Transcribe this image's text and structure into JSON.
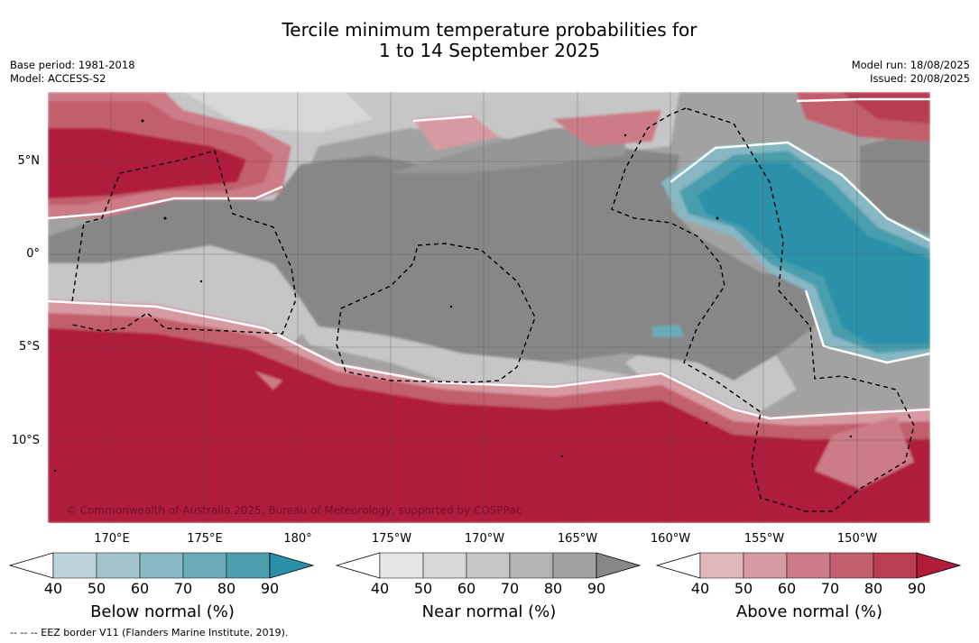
{
  "title_line1": "Tercile minimum temperature probabilities for",
  "title_line2": "1 to 14 September 2025",
  "base_period": "Base period: 1981-2018",
  "model": "Model: ACCESS-S2",
  "model_run": "Model run: 18/08/2025",
  "issued": "Issued: 20/08/2025",
  "copyright": "© Commonwealth of Australia 2025, Bureau of Meteorology, supported by COSPPac",
  "lat_labels": [
    "5°N",
    "0°",
    "5°S",
    "10°S"
  ],
  "lon_labels": [
    "170°E",
    "175°E",
    "180°",
    "175°W",
    "170°W",
    "165°W",
    "160°W",
    "155°W",
    "150°W"
  ],
  "colorbars": [
    {
      "title": "Below normal (%)",
      "ticks": [
        "40",
        "50",
        "60",
        "70",
        "80",
        "90"
      ],
      "colors": [
        "#ffffff",
        "#bdd3da",
        "#a3c5ce",
        "#87b7c3",
        "#6aabb7",
        "#4a9eae",
        "#2b91a8"
      ]
    },
    {
      "title": "Near normal (%)",
      "ticks": [
        "40",
        "50",
        "60",
        "70",
        "80",
        "90"
      ],
      "colors": [
        "#ffffff",
        "#e6e6e6",
        "#d7d7d7",
        "#c6c6c6",
        "#b3b3b3",
        "#a2a2a2",
        "#878787"
      ]
    },
    {
      "title": "Above normal (%)",
      "ticks": [
        "40",
        "50",
        "60",
        "70",
        "80",
        "90"
      ],
      "colors": [
        "#ffffff",
        "#e2b7bd",
        "#d79aa2",
        "#cc7c87",
        "#c25f6d",
        "#b83e52",
        "#b01c3a"
      ]
    }
  ],
  "footnote": "--  --  -- EEZ border V11 (Flanders Marine Institute, 2019)."
}
